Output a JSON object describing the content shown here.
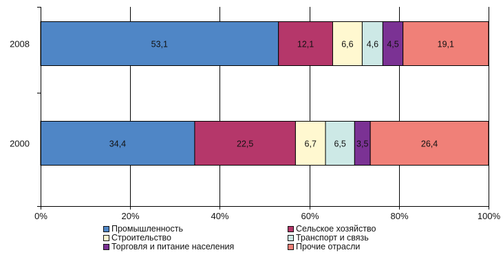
{
  "chart_data": {
    "type": "bar",
    "orientation": "horizontal",
    "stacked": "percent",
    "categories": [
      "2008",
      "2000"
    ],
    "series": [
      {
        "name": "Промышленность",
        "color": "#4f86c6",
        "values": [
          53.1,
          34.4
        ],
        "labels": [
          "53,1",
          "34,4"
        ]
      },
      {
        "name": "Сельское хозяйство",
        "color": "#b5376a",
        "values": [
          12.1,
          22.5
        ],
        "labels": [
          "12,1",
          "22,5"
        ]
      },
      {
        "name": "Строительство",
        "color": "#fff8d0",
        "values": [
          6.6,
          6.7
        ],
        "labels": [
          "6,6",
          "6,7"
        ]
      },
      {
        "name": "Транспорт и связь",
        "color": "#cde9e6",
        "values": [
          4.6,
          6.5
        ],
        "labels": [
          "4,6",
          "6,5"
        ]
      },
      {
        "name": "Торговля и питание населения",
        "color": "#7b3294",
        "values": [
          4.5,
          3.5
        ],
        "labels": [
          "4,5",
          "3,5"
        ]
      },
      {
        "name": "Прочие отрасли",
        "color": "#f08078",
        "values": [
          19.1,
          26.4
        ],
        "labels": [
          "19,1",
          "26,4"
        ]
      }
    ],
    "xlim": [
      0,
      100
    ],
    "x_ticks": [
      "0%",
      "20%",
      "40%",
      "60%",
      "80%",
      "100%"
    ],
    "grid": true,
    "legend_position": "bottom"
  }
}
